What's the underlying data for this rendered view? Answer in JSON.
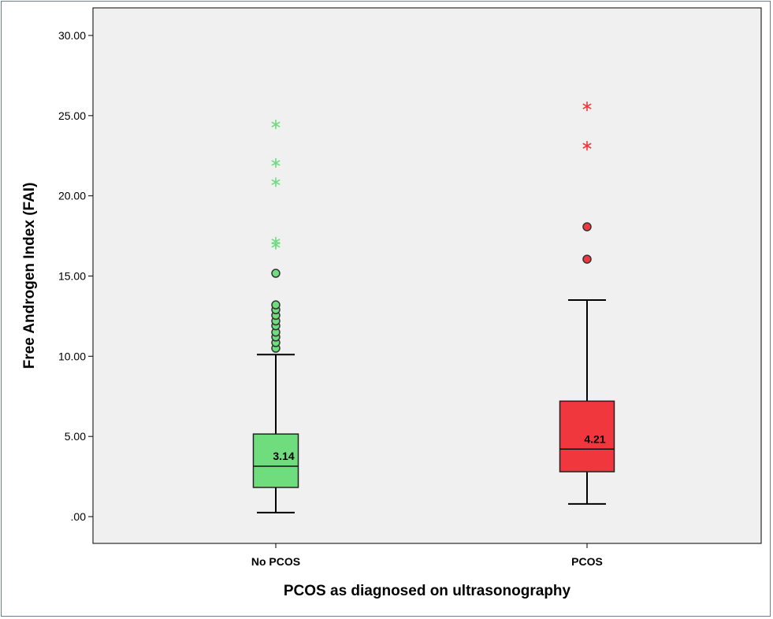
{
  "chart_data": {
    "type": "boxplot",
    "title": "",
    "xlabel": "PCOS as diagnosed on ultrasonography",
    "ylabel": "Free Androgen Index (FAI)",
    "ylim": [
      0,
      30
    ],
    "yticks": [
      ".00",
      "5.00",
      "10.00",
      "15.00",
      "20.00",
      "25.00",
      "30.00"
    ],
    "grid": false,
    "background": "#f0f0f0",
    "categories": [
      "No PCOS",
      "PCOS"
    ],
    "series": [
      {
        "category": "No PCOS",
        "color": "#6fdc7e",
        "whisker_low": 0.25,
        "q1": 1.82,
        "median": 3.14,
        "q3": 5.15,
        "whisker_high": 10.1,
        "median_label": "3.14",
        "outliers": [
          10.5,
          10.85,
          11.2,
          11.5,
          11.9,
          12.2,
          12.55,
          12.9,
          13.2,
          15.17
        ],
        "extremes": [
          16.95,
          17.15,
          20.85,
          22.05,
          24.45
        ]
      },
      {
        "category": "PCOS",
        "color": "#f0373d",
        "whisker_low": 0.79,
        "q1": 2.8,
        "median": 4.21,
        "q3": 7.2,
        "whisker_high": 13.5,
        "median_label": "4.21",
        "outliers": [
          16.05,
          18.07
        ],
        "extremes": [
          23.12,
          25.58
        ]
      }
    ]
  }
}
